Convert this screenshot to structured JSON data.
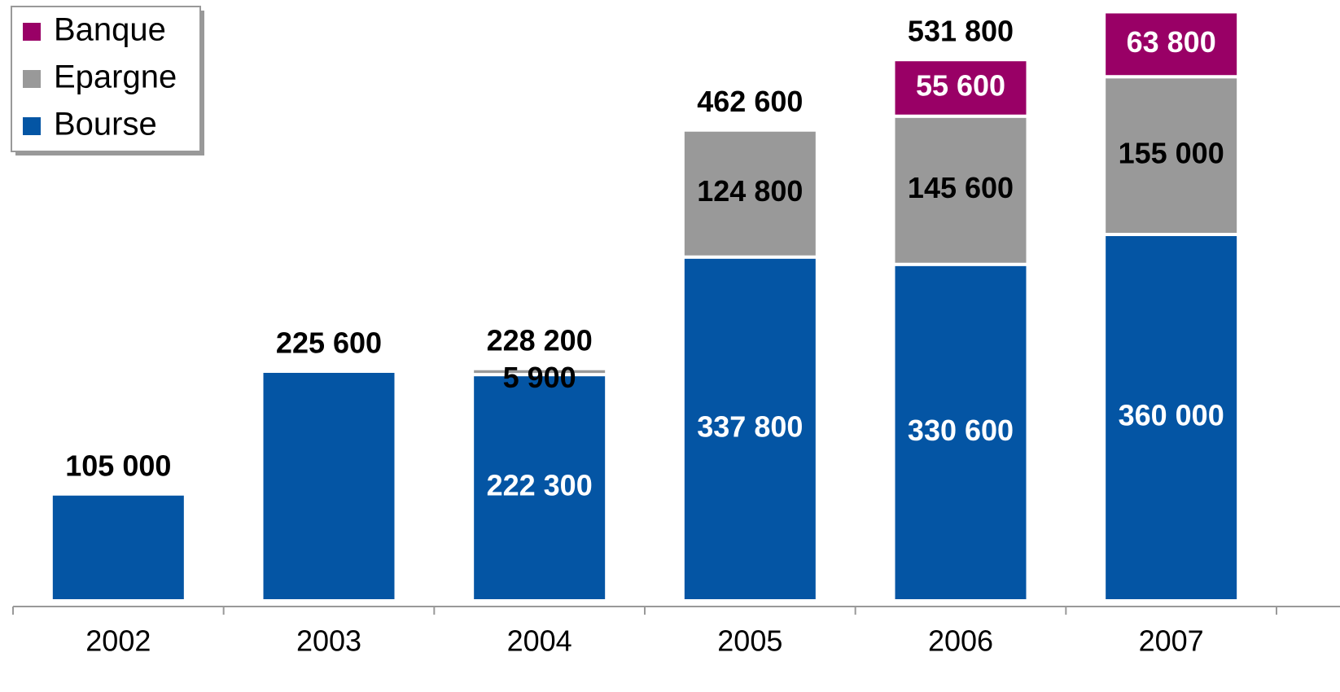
{
  "chart_data": {
    "type": "stacked_bar",
    "categories": [
      "2002",
      "2003",
      "2004",
      "2005",
      "2006",
      "2007"
    ],
    "series": [
      {
        "name": "Bourse",
        "color": "#0455a4",
        "values": [
          105000,
          225600,
          222300,
          337800,
          330600,
          360000
        ],
        "value_labels": [
          null,
          null,
          "222 300",
          "337 800",
          "330 600",
          "360 000"
        ]
      },
      {
        "name": "Epargne",
        "color": "#999999",
        "values": [
          null,
          null,
          5900,
          124800,
          145600,
          155000
        ],
        "value_labels": [
          null,
          null,
          "5 900",
          "124 800",
          "145 600",
          "155 000"
        ]
      },
      {
        "name": "Banque",
        "color": "#990066",
        "values": [
          null,
          null,
          null,
          null,
          55600,
          63800
        ],
        "value_labels": [
          null,
          null,
          null,
          null,
          "55 600",
          "63 800"
        ]
      }
    ],
    "totals": [
      105000,
      225600,
      228200,
      462600,
      531800,
      null
    ],
    "totals_labels": [
      "105 000",
      "225 600",
      "228 200",
      "462 600",
      "531 800",
      null
    ],
    "legend": "upper-left"
  }
}
